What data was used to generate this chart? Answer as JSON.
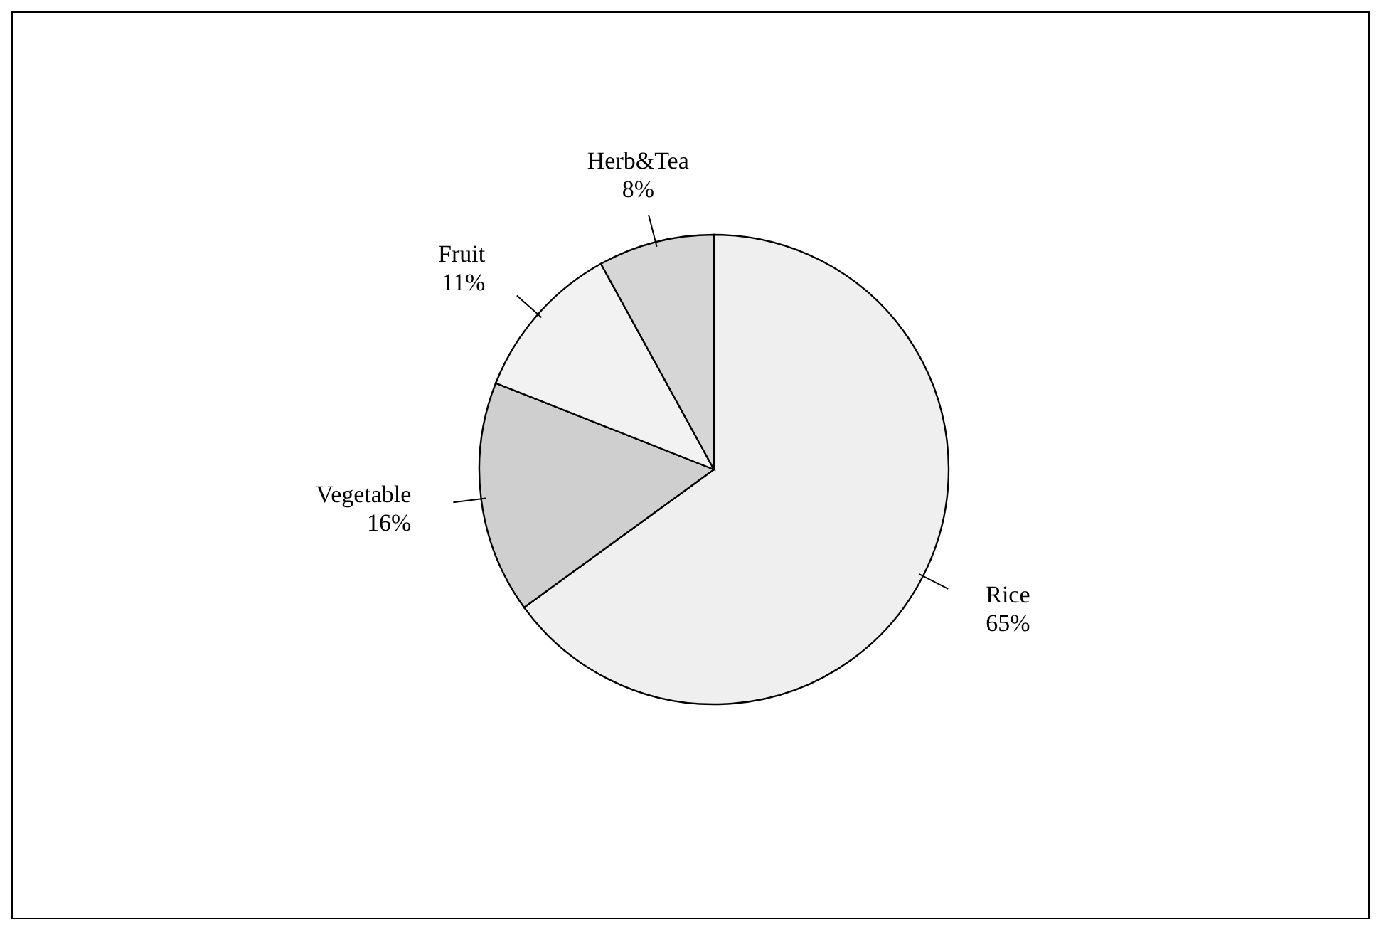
{
  "chart_data": {
    "type": "pie",
    "categories": [
      "Rice",
      "Vegetable",
      "Fruit",
      "Herb&Tea"
    ],
    "values": [
      65,
      16,
      11,
      8
    ],
    "value_labels": [
      "65%",
      "16%",
      "11%",
      "8%"
    ],
    "colors": [
      "#efefef",
      "#cfcfcf",
      "#f2f2f2",
      "#d6d6d6"
    ]
  }
}
